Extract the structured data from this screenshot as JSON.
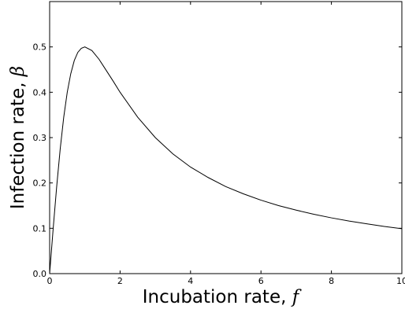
{
  "chart_data": {
    "type": "line",
    "xlabel": "Incubation rate, ",
    "xlabel_symbol": "f",
    "ylabel": "Infection rate, ",
    "ylabel_symbol": "β",
    "xlim": [
      0,
      10
    ],
    "ylim": [
      0,
      0.6
    ],
    "x_ticks": [
      0,
      2,
      4,
      6,
      8,
      10
    ],
    "x_tick_labels": [
      "0",
      "2",
      "4",
      "6",
      "8",
      "10"
    ],
    "y_ticks": [
      0.0,
      0.1,
      0.2,
      0.3,
      0.4,
      0.5
    ],
    "y_tick_labels": [
      "0.0",
      "0.1",
      "0.2",
      "0.3",
      "0.4",
      "0.5"
    ],
    "grid": false,
    "line_color": "#000000",
    "series": [
      {
        "x": [
          0,
          0.1,
          0.2,
          0.3,
          0.4,
          0.5,
          0.6,
          0.7,
          0.8,
          0.9,
          1.0,
          1.2,
          1.4,
          1.6,
          1.8,
          2.0,
          2.5,
          3.0,
          3.5,
          4.0,
          4.5,
          5.0,
          5.5,
          6.0,
          6.5,
          7.0,
          7.5,
          8.0,
          8.5,
          9.0,
          9.5,
          10.0
        ],
        "y": [
          0,
          0.099,
          0.192,
          0.275,
          0.345,
          0.4,
          0.441,
          0.47,
          0.488,
          0.497,
          0.5,
          0.492,
          0.473,
          0.449,
          0.425,
          0.4,
          0.345,
          0.3,
          0.264,
          0.235,
          0.212,
          0.192,
          0.176,
          0.162,
          0.15,
          0.14,
          0.131,
          0.123,
          0.116,
          0.11,
          0.104,
          0.099
        ]
      }
    ]
  }
}
